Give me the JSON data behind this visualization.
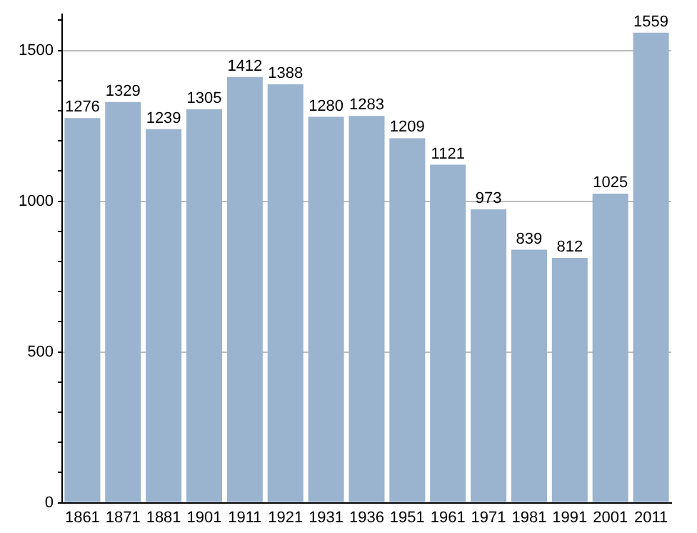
{
  "chart_data": {
    "type": "bar",
    "categories": [
      "1861",
      "1871",
      "1881",
      "1901",
      "1911",
      "1921",
      "1931",
      "1936",
      "1951",
      "1961",
      "1971",
      "1981",
      "1991",
      "2001",
      "2011"
    ],
    "values": [
      1276,
      1329,
      1239,
      1305,
      1412,
      1388,
      1280,
      1283,
      1209,
      1121,
      973,
      839,
      812,
      1025,
      1559
    ],
    "color": "#9ab3cf",
    "ylim": [
      0,
      1620
    ],
    "yticks": [
      0,
      {
        "value": 100,
        "label": null
      },
      {
        "value": 200,
        "label": null
      },
      {
        "value": 300,
        "label": null
      },
      {
        "value": 400,
        "label": null
      },
      500,
      {
        "value": 600,
        "label": null
      },
      {
        "value": 700,
        "label": null
      },
      {
        "value": 800,
        "label": null
      },
      {
        "value": 900,
        "label": null
      },
      1000,
      {
        "value": 1100,
        "label": null
      },
      {
        "value": 1200,
        "label": null
      },
      {
        "value": 1300,
        "label": null
      },
      {
        "value": 1400,
        "label": null
      },
      1500,
      {
        "value": 1600,
        "label": null
      }
    ],
    "grid": "y",
    "data_labels": true
  }
}
